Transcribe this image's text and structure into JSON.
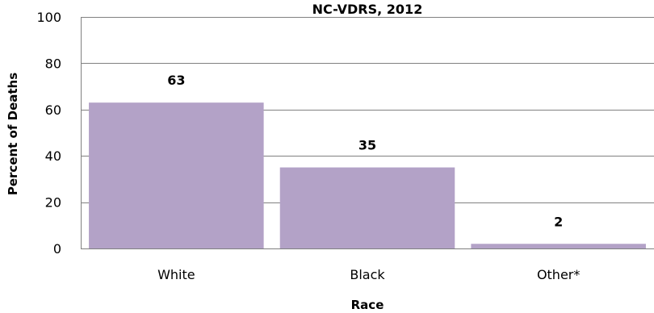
{
  "chart_data": {
    "type": "bar",
    "title": "NC-VDRS, 2012",
    "xlabel": "Race",
    "ylabel": "Percent of Deaths",
    "categories": [
      "White",
      "Black",
      "Other*"
    ],
    "values": [
      63,
      35,
      2
    ],
    "data_labels": [
      "63",
      "35",
      "2"
    ],
    "ylim": [
      0,
      100
    ],
    "yticks": [
      0,
      20,
      40,
      60,
      80,
      100
    ],
    "ytick_labels": [
      "0",
      "20",
      "40",
      "60",
      "80",
      "100"
    ],
    "grid": true,
    "legend": "none",
    "bar_color": "#b3a2c7",
    "plot_border_color": "#808080",
    "grid_color": "#808080"
  }
}
